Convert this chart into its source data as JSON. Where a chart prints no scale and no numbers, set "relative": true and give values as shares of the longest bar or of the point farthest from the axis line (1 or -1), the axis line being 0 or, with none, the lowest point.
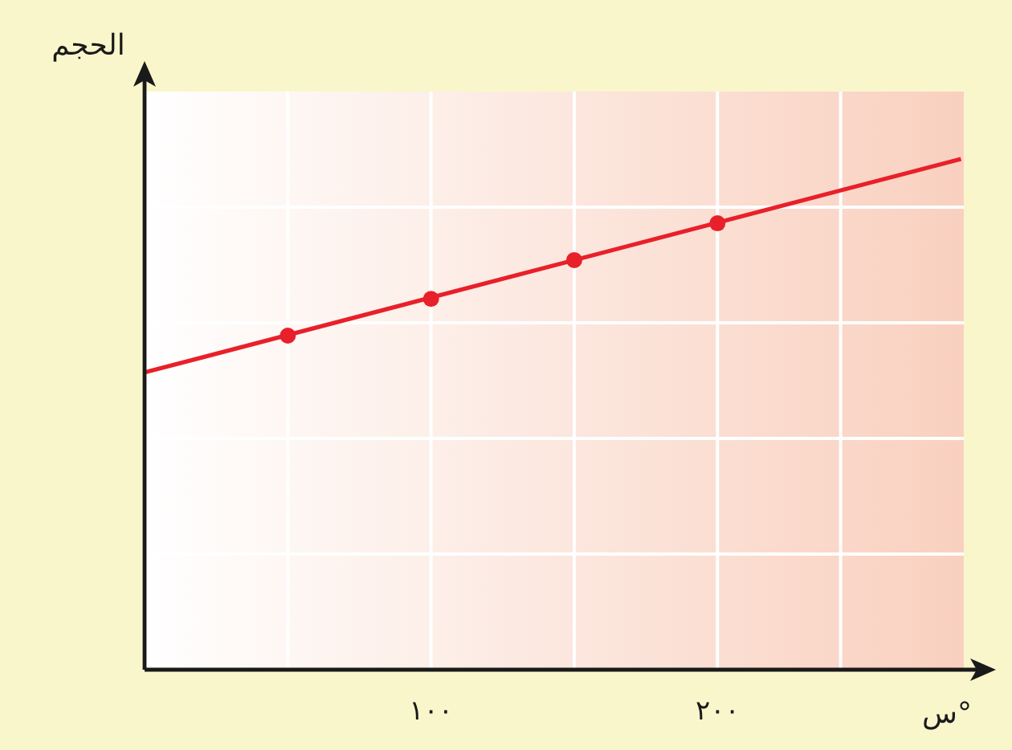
{
  "chart_data": {
    "type": "line",
    "ylabel": "الحجم",
    "xlabel": "°س",
    "relative": true,
    "xlim": [
      0,
      286
    ],
    "xticks": [
      {
        "value": 50,
        "label": null
      },
      {
        "value": 100,
        "label": "١٠٠"
      },
      {
        "value": 150,
        "label": null
      },
      {
        "value": 200,
        "label": "٢٠٠"
      },
      {
        "value": 243,
        "label": null
      }
    ],
    "grid": true,
    "series": [
      {
        "x": [
          0,
          285
        ],
        "values": [
          0.582,
          1
        ],
        "color": "#e8202a",
        "marker": "none"
      },
      {
        "type": "scatter",
        "x": [
          50,
          100,
          150,
          200
        ],
        "values": [
          0.654,
          0.726,
          0.802,
          0.874
        ],
        "color": "#e8202a",
        "marker": "circle"
      }
    ]
  }
}
